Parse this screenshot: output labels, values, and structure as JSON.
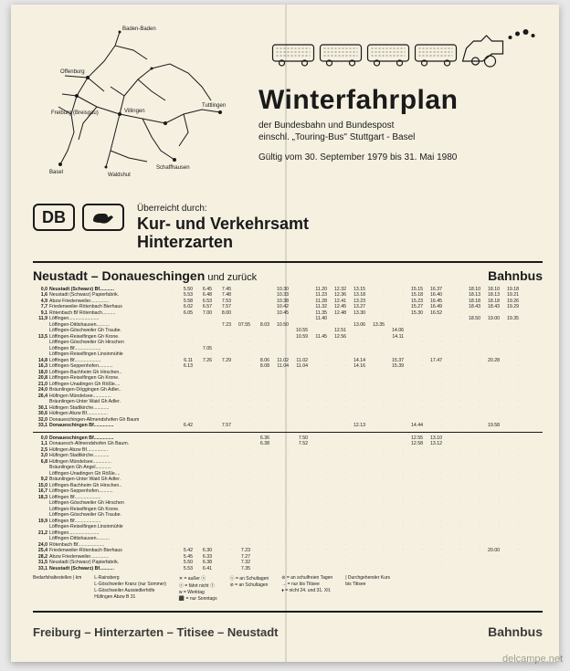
{
  "header": {
    "title": "Winterfahrplan",
    "subtitle_line1": "der Bundesbahn und Bundespost",
    "subtitle_line2": "einschl. „Touring-Bus\" Stuttgart - Basel",
    "validity": "Gültig vom 30. September 1979 bis 31. Mai 1980",
    "presented_label": "Überreicht durch:",
    "org_line1": "Kur- und Verkehrsamt",
    "org_line2": "Hinterzarten",
    "db_logo": "DB"
  },
  "route": {
    "title_bold": "Neustadt – Donaueschingen",
    "title_light": " und zurück",
    "mode": "Bahnbus"
  },
  "map_labels": [
    "Baden-Baden",
    "Offenburg",
    "Freiburg (Breisgau)",
    "Villingen",
    "Tuttlingen",
    "Schaffhausen",
    "Basel",
    "Waldshut"
  ],
  "outbound": [
    {
      "km": "0,0",
      "stop": "Neustadt (Schwarz) Bf",
      "bold": true,
      "times": [
        "",
        "5.50",
        "6.45",
        "7.45",
        "",
        "",
        "10.30",
        "",
        "11.20",
        "12.32",
        "13.15",
        "",
        "",
        "15.15",
        "16.37",
        "",
        "18.10",
        "18.10",
        "19.18"
      ]
    },
    {
      "km": "1,6",
      "stop": "Neustadt (Schwarz) Papierfabrik",
      "times": [
        "",
        "5.53",
        "6.48",
        "7.48",
        "",
        "",
        "10.33",
        "",
        "11.23",
        "12.36",
        "13.18",
        "",
        "",
        "15.18",
        "16.40",
        "",
        "18.13",
        "18.13",
        "19.21"
      ]
    },
    {
      "km": "4,9",
      "stop": "Abzw Friedenweiler",
      "times": [
        "",
        "5.58",
        "6.53",
        "7.53",
        "",
        "",
        "10.38",
        "",
        "11.28",
        "12.41",
        "13.23",
        "",
        "",
        "15.23",
        "16.45",
        "",
        "18.18",
        "18.18",
        "19.26"
      ]
    },
    {
      "km": "7,7",
      "stop": "Friedenweiler-Rötenbach Bierhaus",
      "times": [
        "",
        "6.02",
        "6.57",
        "7.57",
        "",
        "",
        "10.42",
        "",
        "11.32",
        "12.45",
        "13.27",
        "",
        "",
        "15.27",
        "16.49",
        "",
        "18.43",
        "18.43",
        "19.29"
      ]
    },
    {
      "km": "9,1",
      "stop": "Rötenbach Bf Rötenbach",
      "times": [
        "",
        "6.05",
        "7.00",
        "8.00",
        "",
        "",
        "10.45",
        "",
        "11.35",
        "12.48",
        "13.30",
        "",
        "",
        "15.30",
        "16.52",
        "",
        "",
        "",
        ""
      ]
    },
    {
      "km": "11,9",
      "stop": "Löffingen",
      "times": [
        "",
        "",
        "",
        "",
        "",
        "",
        "",
        "",
        "11.40",
        "",
        "",
        "",
        "",
        "",
        "",
        "",
        "18.50",
        "19.00",
        "19.35"
      ]
    },
    {
      "km": "",
      "stop": "Löffingen-Dittishausen",
      "times": [
        "",
        "",
        "",
        "7.23",
        "07.55",
        "8.03",
        "10.50",
        "",
        "",
        "",
        "13.06",
        "13.35",
        "",
        "",
        "",
        "",
        "",
        "",
        ""
      ]
    },
    {
      "km": "",
      "stop": "Löffingen-Göschweiler Gh Traube",
      "times": [
        "",
        "",
        "",
        "",
        "",
        "",
        "",
        "10.55",
        "",
        "12.51",
        "",
        "",
        "14.06",
        "",
        "",
        "",
        "",
        "",
        ""
      ]
    },
    {
      "km": "13,5",
      "stop": "Löffingen-Reiselfingen Gh Krone",
      "times": [
        "",
        "",
        "",
        "",
        "",
        "",
        "",
        "10.59",
        "11.45",
        "12.56",
        "",
        "",
        "14.11",
        "",
        "",
        "",
        "",
        "",
        ""
      ]
    },
    {
      "km": "",
      "stop": "Löffingen-Göschweiler Gh Hirschen",
      "times": [
        "",
        "",
        "",
        "",
        "",
        "",
        "",
        "",
        "",
        "",
        "",
        "",
        "",
        "",
        "",
        "",
        "",
        "",
        ""
      ]
    },
    {
      "km": "",
      "stop": "Löffingen Bf",
      "times": [
        "",
        "",
        "7.05",
        "",
        "",
        "",
        "",
        "",
        "",
        "",
        "",
        "",
        "",
        "",
        "",
        "",
        "",
        "",
        ""
      ]
    },
    {
      "km": "",
      "stop": "Löffingen-Reiselfingen Linsinmühle",
      "times": [
        "",
        "",
        "",
        "",
        "",
        "",
        "",
        "",
        "",
        "",
        "",
        "",
        "",
        "",
        "",
        "",
        "",
        "",
        ""
      ]
    },
    {
      "km": "14,8",
      "stop": "Löffingen Bf",
      "times": [
        "",
        "6.11",
        "7.26",
        "7.29",
        "",
        "8.06",
        "11.02",
        "11.02",
        "",
        "",
        "14.14",
        "",
        "15.37",
        "",
        "17.47",
        "",
        "",
        "20.28",
        ""
      ]
    },
    {
      "km": "16,3",
      "stop": "Löffingen-Seppenhofen",
      "times": [
        "",
        "6.13",
        "",
        "",
        "",
        "8.08",
        "11.04",
        "11.04",
        "",
        "",
        "14.16",
        "",
        "15.39",
        "",
        "",
        "",
        "",
        "",
        ""
      ]
    },
    {
      "km": "18,0",
      "stop": "Löffingen-Bachheim Gh Hirschen",
      "times": [
        "",
        "",
        "",
        "",
        "",
        "",
        "",
        "",
        "",
        "",
        "",
        "",
        "",
        "",
        "",
        "",
        "",
        "",
        ""
      ]
    },
    {
      "km": "20,8",
      "stop": "Löffingen-Reiselfingen Gh Krone",
      "times": [
        "",
        "",
        "",
        "",
        "",
        "",
        "",
        "",
        "",
        "",
        "",
        "",
        "",
        "",
        "",
        "",
        "",
        "",
        ""
      ]
    },
    {
      "km": "21,0",
      "stop": "Löffingen-Unadingen Gh Rößle",
      "times": [
        "",
        "",
        "",
        "",
        "",
        "",
        "",
        "",
        "",
        "",
        "",
        "",
        "",
        "",
        "",
        "",
        "",
        "",
        ""
      ]
    },
    {
      "km": "24,0",
      "stop": "Bräunlingen-Döggingen Gh Adler",
      "times": [
        "",
        "",
        "",
        "",
        "",
        "",
        "",
        "",
        "",
        "",
        "",
        "",
        "",
        "",
        "",
        "",
        "",
        "",
        ""
      ]
    },
    {
      "km": "26,4",
      "stop": "Hüfingen Mündelsee",
      "times": [
        "",
        "",
        "",
        "",
        "",
        "",
        "",
        "",
        "",
        "",
        "",
        "",
        "",
        "",
        "",
        "",
        "",
        "",
        ""
      ]
    },
    {
      "km": "",
      "stop": "Bräunlingen-Unter Waid Gh Adler",
      "times": [
        "",
        "",
        "",
        "",
        "",
        "",
        "",
        "",
        "",
        "",
        "",
        "",
        "",
        "",
        "",
        "",
        "",
        "",
        ""
      ]
    },
    {
      "km": "30,1",
      "stop": "Hüfingen Stadtkirche",
      "times": [
        "",
        "",
        "",
        "",
        "",
        "",
        "",
        "",
        "",
        "",
        "",
        "",
        "",
        "",
        "",
        "",
        "",
        "",
        ""
      ]
    },
    {
      "km": "30,6",
      "stop": "Hüfingen Abzw Bf",
      "times": [
        "",
        "",
        "",
        "",
        "",
        "",
        "",
        "",
        "",
        "",
        "",
        "",
        "",
        "",
        "",
        "",
        "",
        "",
        ""
      ]
    },
    {
      "km": "32,0",
      "stop": "Donaueschingen-Allmendshofen Gh Baum",
      "times": [
        "",
        "",
        "",
        "",
        "",
        "",
        "",
        "",
        "",
        "",
        "",
        "",
        "",
        "",
        "",
        "",
        "",
        "",
        ""
      ]
    },
    {
      "km": "33,1",
      "stop": "Donaueschingen Bf",
      "bold": true,
      "times": [
        "",
        "6.42",
        "",
        "7.57",
        "",
        "",
        "",
        "",
        "",
        "",
        "12.13",
        "",
        "",
        "14.44",
        "",
        "",
        "",
        "19.58",
        ""
      ]
    }
  ],
  "inbound": [
    {
      "km": "0,0",
      "stop": "Donaueschingen Bf",
      "bold": true,
      "times": [
        "",
        "",
        "",
        "",
        "",
        "6.36",
        "",
        "7.50",
        "",
        "",
        "",
        "",
        "",
        "12.55",
        "13.10",
        "",
        "",
        "",
        ""
      ]
    },
    {
      "km": "1,1",
      "stop": "Donauesch-Allmendshofen Gh Baum",
      "times": [
        "",
        "",
        "",
        "",
        "",
        "6.38",
        "",
        "7.52",
        "",
        "",
        "",
        "",
        "",
        "12.58",
        "13.12",
        "",
        "",
        "",
        ""
      ]
    },
    {
      "km": "2,5",
      "stop": "Hüfingen Abzw Bf",
      "times": [
        "",
        "",
        "",
        "",
        "",
        "",
        "",
        "",
        "",
        "",
        "",
        "",
        "",
        "",
        "",
        "",
        "",
        "",
        ""
      ]
    },
    {
      "km": "3,0",
      "stop": "Hüfingen Stadtkirche",
      "times": [
        "",
        "",
        "",
        "",
        "",
        "",
        "",
        "",
        "",
        "",
        "",
        "",
        "",
        "",
        "",
        "",
        "",
        "",
        ""
      ]
    },
    {
      "km": "6,8",
      "stop": "Hüfingen Mündelsee",
      "times": [
        "",
        "",
        "",
        "",
        "",
        "",
        "",
        "",
        "",
        "",
        "",
        "",
        "",
        "",
        "",
        "",
        "",
        "",
        ""
      ]
    },
    {
      "km": "",
      "stop": "Bräunlingen Gh Angel",
      "times": [
        "",
        "",
        "",
        "",
        "",
        "",
        "",
        "",
        "",
        "",
        "",
        "",
        "",
        "",
        "",
        "",
        "",
        "",
        ""
      ]
    },
    {
      "km": "",
      "stop": "Löffingen-Unadingen Gh Rößle",
      "times": [
        "",
        "",
        "",
        "",
        "",
        "",
        "",
        "",
        "",
        "",
        "",
        "",
        "",
        "",
        "",
        "",
        "",
        "",
        ""
      ]
    },
    {
      "km": "9,2",
      "stop": "Bräunlingen-Unter Waid Gh Adler",
      "times": [
        "",
        "",
        "",
        "",
        "",
        "",
        "",
        "",
        "",
        "",
        "",
        "",
        "",
        "",
        "",
        "",
        "",
        "",
        ""
      ]
    },
    {
      "km": "15,0",
      "stop": "Löffingen-Bachheim Gh Hirschen",
      "times": [
        "",
        "",
        "",
        "",
        "",
        "",
        "",
        "",
        "",
        "",
        "",
        "",
        "",
        "",
        "",
        "",
        "",
        "",
        ""
      ]
    },
    {
      "km": "16,7",
      "stop": "Löffingen-Seppenhofen",
      "times": [
        "",
        "",
        "",
        "",
        "",
        "",
        "",
        "",
        "",
        "",
        "",
        "",
        "",
        "",
        "",
        "",
        "",
        "",
        ""
      ]
    },
    {
      "km": "18,3",
      "stop": "Löffingen Bf",
      "times": [
        "",
        "",
        "",
        "",
        "",
        "",
        "",
        "",
        "",
        "",
        "",
        "",
        "",
        "",
        "",
        "",
        "",
        "",
        ""
      ]
    },
    {
      "km": "",
      "stop": "Löffingen-Göschweiler Gh Hirschen",
      "times": [
        "",
        "",
        "",
        "",
        "",
        "",
        "",
        "",
        "",
        "",
        "",
        "",
        "",
        "",
        "",
        "",
        "",
        "",
        ""
      ]
    },
    {
      "km": "",
      "stop": "Löffingen-Reiselfingen Gh Krone",
      "times": [
        "",
        "",
        "",
        "",
        "",
        "",
        "",
        "",
        "",
        "",
        "",
        "",
        "",
        "",
        "",
        "",
        "",
        "",
        ""
      ]
    },
    {
      "km": "",
      "stop": "Löffingen-Göschweiler Gh Traube",
      "times": [
        "",
        "",
        "",
        "",
        "",
        "",
        "",
        "",
        "",
        "",
        "",
        "",
        "",
        "",
        "",
        "",
        "",
        "",
        ""
      ]
    },
    {
      "km": "19,9",
      "stop": "Löffingen Bf",
      "times": [
        "",
        "",
        "",
        "",
        "",
        "",
        "",
        "",
        "",
        "",
        "",
        "",
        "",
        "",
        "",
        "",
        "",
        "",
        ""
      ]
    },
    {
      "km": "",
      "stop": "Löffingen-Reiselfingen Linsinmühle",
      "times": [
        "",
        "",
        "",
        "",
        "",
        "",
        "",
        "",
        "",
        "",
        "",
        "",
        "",
        "",
        "",
        "",
        "",
        "",
        ""
      ]
    },
    {
      "km": "21,2",
      "stop": "Löffingen",
      "times": [
        "",
        "",
        "",
        "",
        "",
        "",
        "",
        "",
        "",
        "",
        "",
        "",
        "",
        "",
        "",
        "",
        "",
        "",
        ""
      ]
    },
    {
      "km": "",
      "stop": "Löffingen-Dittishausen",
      "times": [
        "",
        "",
        "",
        "",
        "",
        "",
        "",
        "",
        "",
        "",
        "",
        "",
        "",
        "",
        "",
        "",
        "",
        "",
        ""
      ]
    },
    {
      "km": "24,0",
      "stop": "Rötenbach Bf",
      "times": [
        "",
        "",
        "",
        "",
        "",
        "",
        "",
        "",
        "",
        "",
        "",
        "",
        "",
        "",
        "",
        "",
        "",
        "",
        ""
      ]
    },
    {
      "km": "25,4",
      "stop": "Friedenweiler-Rötenbach Bierhaus",
      "times": [
        "",
        "5.42",
        "6.30",
        "",
        "7.23",
        "",
        "",
        "",
        "",
        "",
        "",
        "",
        "",
        "",
        "",
        "",
        "",
        "20.00",
        ""
      ]
    },
    {
      "km": "28,2",
      "stop": "Abzw Friedenweiler",
      "times": [
        "",
        "5.45",
        "6.33",
        "",
        "7.27",
        "",
        "",
        "",
        "",
        "",
        "",
        "",
        "",
        "",
        "",
        "",
        "",
        "",
        ""
      ]
    },
    {
      "km": "31,5",
      "stop": "Neustadt (Schwarz) Papierfabrik",
      "times": [
        "",
        "5.50",
        "6.38",
        "",
        "7.32",
        "",
        "",
        "",
        "",
        "",
        "",
        "",
        "",
        "",
        "",
        "",
        "",
        "",
        ""
      ]
    },
    {
      "km": "33,1",
      "stop": "Neustadt (Schwarz) Bf",
      "bold": true,
      "times": [
        "",
        "5.53",
        "6.41",
        "",
        "7.35",
        "",
        "",
        "",
        "",
        "",
        "",
        "",
        "",
        "",
        "",
        "",
        "",
        "",
        ""
      ]
    }
  ],
  "legend": {
    "header": "Bedarfshaltestellen | km",
    "col1": [
      "L-Rainsberg",
      "L-Göschweiler Kranz (nur Sommer)",
      "L-Göschweiler Aussiedlerhöfe",
      "Hüfingen Abzw B 31"
    ],
    "col2": [
      "✕ = außer ⓢ",
      "ⓢ = fährt nicht ①",
      "w = Werktag",
      "⬛ = nur Sonntags"
    ],
    "col3": [
      "ⓢ = an Schultagen",
      "⊘ = an Schultagen"
    ],
    "col4": [
      "⊘ = an schulfreien Tagen",
      "→ = nur bis Titisee",
      "♦ = nicht 24. und 31. XII."
    ],
    "col5": [
      "| Durchgehender Kurs",
      "  bis Titisee"
    ]
  },
  "bottom_cut": "Freiburg – Hinterzarten – Titisee – Neustadt",
  "bottom_mode": "Bahnbus",
  "watermark": "delcampe.net"
}
